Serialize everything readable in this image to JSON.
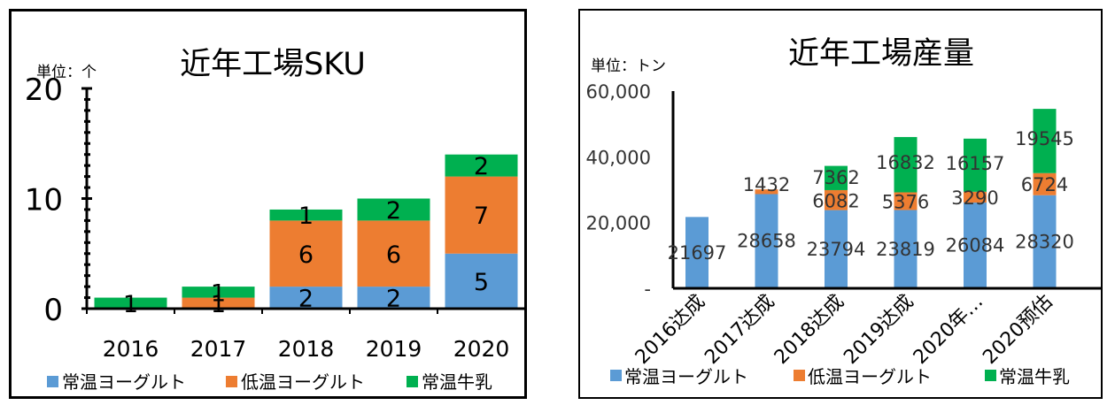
{
  "chart_data": [
    {
      "type": "bar",
      "stacked": true,
      "title": "近年工場SKU",
      "unit_label": "単位：个",
      "categories": [
        "2016",
        "2017",
        "2018",
        "2019",
        "2020"
      ],
      "series": [
        {
          "name": "常温ヨーグルト",
          "values": [
            0,
            0,
            2,
            2,
            5
          ],
          "labels": [
            "",
            "",
            "2",
            "2",
            "5"
          ],
          "color": "#5b9bd5"
        },
        {
          "name": "低温ヨーグルト",
          "values": [
            0,
            1,
            6,
            6,
            7
          ],
          "labels": [
            "",
            "1",
            "6",
            "6",
            "7"
          ],
          "color": "#ed7d31"
        },
        {
          "name": "常温牛乳",
          "values": [
            1,
            1,
            1,
            2,
            2
          ],
          "labels": [
            "1",
            "1",
            "1",
            "2",
            "2"
          ],
          "color": "#00b050"
        }
      ],
      "ylim": [
        0,
        20
      ],
      "yticks": [
        "0",
        "10",
        "20"
      ],
      "legend_position": "bottom"
    },
    {
      "type": "bar",
      "stacked": true,
      "title": "近年工場産量",
      "unit_label": "単位：トン",
      "categories": [
        "2016达成",
        "2017达成",
        "2018达成",
        "2019达成",
        "2020年…",
        "2020预估"
      ],
      "series": [
        {
          "name": "常温ヨーグルト",
          "values": [
            21697,
            28658,
            23794,
            23819,
            26084,
            28320
          ],
          "labels": [
            "21697",
            "28658",
            "23794",
            "23819",
            "26084",
            "28320"
          ],
          "color": "#5b9bd5"
        },
        {
          "name": "低温ヨーグルト",
          "values": [
            0,
            1432,
            6082,
            5376,
            3290,
            6724
          ],
          "labels": [
            "",
            "1432",
            "6082",
            "5376",
            "3290",
            "6724"
          ],
          "color": "#ed7d31"
        },
        {
          "name": "常温牛乳",
          "values": [
            0,
            0,
            7362,
            16832,
            16157,
            19545
          ],
          "labels": [
            "",
            "",
            "7362",
            "16832",
            "16157",
            "19545"
          ],
          "color": "#00b050"
        }
      ],
      "ylim": [
        0,
        60000
      ],
      "yticks": [
        "-",
        "20,000",
        "40,000",
        "60,000"
      ],
      "legend_position": "bottom"
    }
  ]
}
